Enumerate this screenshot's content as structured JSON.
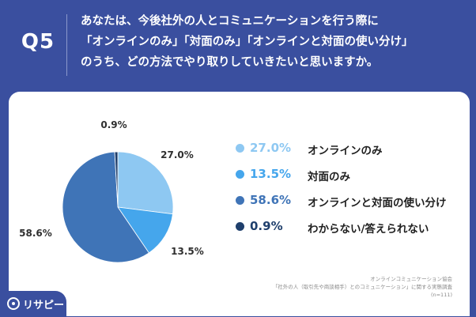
{
  "header": {
    "question_number": "Q5",
    "question_lines": [
      "あなたは、今後社外の人とコミュニケーションを行う際に",
      "「オンラインのみ」「対面のみ」「オンラインと対面の使い分け」",
      "のうち、どの方法でやり取りしていきたいと思いますか。"
    ]
  },
  "chart_data": {
    "type": "pie",
    "title": "",
    "slices": [
      {
        "label": "オンラインのみ",
        "value": 27.0,
        "display": "27.0%",
        "color": "#8ec8f2"
      },
      {
        "label": "対面のみ",
        "value": 13.5,
        "display": "13.5%",
        "color": "#45a6ec"
      },
      {
        "label": "オンラインと対面の使い分け",
        "value": 58.6,
        "display": "58.6%",
        "color": "#3f74b7"
      },
      {
        "label": "わからない/答えられない",
        "value": 0.9,
        "display": "0.9%",
        "color": "#1f3f6c"
      }
    ],
    "legend_position": "right",
    "start_angle_deg": 0,
    "direction": "clockwise"
  },
  "source": {
    "line1": "オンラインコミュニケーション協会",
    "line2": "「社外の人（取引先や商談相手）とのコミュニケーション」に関する実態調査",
    "line3": "(n=111)"
  },
  "brand": {
    "name": "リサピー"
  }
}
